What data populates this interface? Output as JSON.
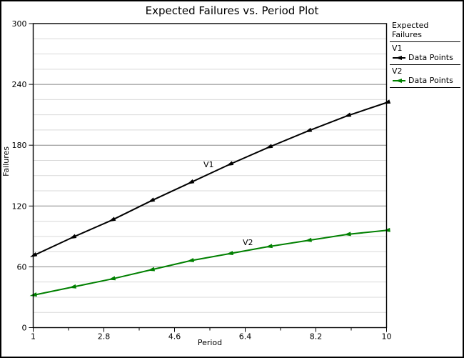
{
  "chart_data": {
    "type": "line",
    "title": "Expected Failures vs. Period Plot",
    "xlabel": "Period",
    "ylabel": "Failures",
    "xlim": [
      1,
      10
    ],
    "ylim": [
      0,
      300
    ],
    "x_ticks": [
      1,
      2.8,
      4.6,
      6.4,
      8.2,
      10
    ],
    "x_tick_labels": [
      "1",
      "2.8",
      "4.6",
      "6.4",
      "8.2",
      "10"
    ],
    "x_minor_ticks": [
      1.9,
      3.7,
      5.5,
      7.3,
      9.1
    ],
    "y_ticks": [
      0,
      60,
      120,
      180,
      240,
      300
    ],
    "y_minor_step": 15,
    "grid": "horizontal-only",
    "legend_position": "right",
    "x": [
      1,
      2,
      3,
      4,
      5,
      6,
      7,
      8,
      9,
      10
    ],
    "series": [
      {
        "name": "V1",
        "label": "Data Points",
        "color": "#000000",
        "marker": "left-arrowhead",
        "values": [
          71,
          89,
          106,
          125,
          143,
          161,
          178,
          194,
          209,
          222
        ]
      },
      {
        "name": "V2",
        "label": "Data Points",
        "color": "#008000",
        "marker": "left-arrowhead",
        "values": [
          32,
          40,
          48,
          57,
          66,
          73,
          80,
          86,
          92,
          96
        ]
      }
    ]
  },
  "legend": {
    "header": "Expected Failures"
  },
  "colors": {
    "axis": "#000000",
    "grid_major": "#888888",
    "grid_minor": "#d9d9d9",
    "background": "#ffffff",
    "text": "#000000"
  }
}
